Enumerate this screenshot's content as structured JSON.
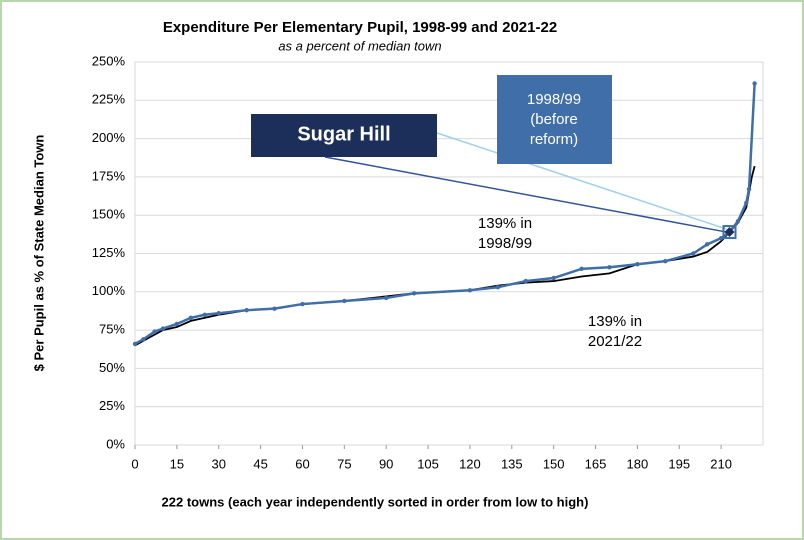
{
  "chart_data": {
    "type": "line",
    "title": "Expenditure Per Elementary Pupil, 1998-99 and 2021-22",
    "subtitle": "as a percent of median town",
    "ylabel": "$ Per Pupil as % of State Median Town",
    "xlabel": "222 towns (each year independently sorted in order from low to high)",
    "xlim": [
      0,
      225
    ],
    "xticks": [
      0,
      15,
      30,
      45,
      60,
      75,
      90,
      105,
      120,
      135,
      150,
      165,
      180,
      195,
      210
    ],
    "ylim": [
      0,
      250
    ],
    "yticks": [
      {
        "value": 0,
        "label": "0%"
      },
      {
        "value": 25,
        "label": "25%"
      },
      {
        "value": 50,
        "label": "50%"
      },
      {
        "value": 75,
        "label": "75%"
      },
      {
        "value": 100,
        "label": "100%"
      },
      {
        "value": 125,
        "label": "125%"
      },
      {
        "value": 150,
        "label": "150%"
      },
      {
        "value": 175,
        "label": "175%"
      },
      {
        "value": 200,
        "label": "200%"
      },
      {
        "value": 225,
        "label": "225%"
      },
      {
        "value": 250,
        "label": "250%"
      }
    ],
    "grid": true,
    "series": [
      {
        "color": "#000000",
        "markers": false,
        "x": [
          0,
          5,
          10,
          15,
          20,
          30,
          40,
          50,
          60,
          75,
          90,
          100,
          120,
          130,
          140,
          150,
          160,
          170,
          180,
          190,
          200,
          205,
          210,
          213,
          216,
          219,
          221,
          222
        ],
        "values": [
          65,
          70,
          75,
          77,
          81,
          85,
          88,
          89,
          92,
          94,
          97,
          99,
          101,
          104,
          106,
          107,
          110,
          112,
          118,
          120,
          123,
          126,
          133,
          139,
          145,
          155,
          175,
          182
        ]
      },
      {
        "color": "#3f6ea8",
        "markers": true,
        "x": [
          0,
          3,
          7,
          10,
          15,
          20,
          25,
          30,
          40,
          50,
          60,
          75,
          90,
          100,
          120,
          130,
          140,
          150,
          160,
          170,
          180,
          190,
          200,
          205,
          210,
          213,
          216,
          219,
          220,
          222
        ],
        "values": [
          66,
          69,
          74,
          76,
          79,
          83,
          85,
          86,
          88,
          89,
          92,
          94,
          96,
          99,
          101,
          103,
          107,
          109,
          115,
          116,
          118,
          120,
          125,
          131,
          135,
          139,
          146,
          158,
          167,
          236
        ]
      }
    ],
    "highlight": {
      "x": 213,
      "value": 139
    },
    "annotations": {
      "town": "Sugar Hill",
      "before": [
        "1998/99",
        "(before",
        "reform)"
      ],
      "old": [
        "139% in",
        "1998/99"
      ],
      "new": [
        "139% in",
        "2021/22"
      ]
    }
  }
}
